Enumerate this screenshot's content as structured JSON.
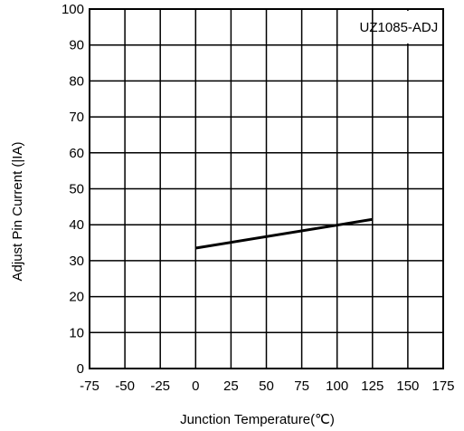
{
  "chart_data": {
    "type": "line",
    "title": "",
    "xlabel": "Junction Temperature(℃)",
    "ylabel": "Adjust Pin Current (|IA)",
    "xlim": [
      -75,
      175
    ],
    "ylim": [
      0,
      100
    ],
    "xticks": [
      -75,
      -50,
      -25,
      0,
      25,
      50,
      75,
      100,
      125,
      150,
      175
    ],
    "yticks": [
      0,
      10,
      20,
      30,
      40,
      50,
      60,
      70,
      80,
      90,
      100
    ],
    "grid": true,
    "annotation": "UZ1085-ADJ",
    "series": [
      {
        "x": [
          0,
          125
        ],
        "y": [
          33.5,
          41.5
        ]
      }
    ]
  },
  "colors": {
    "line": "#000000",
    "grid": "#000000",
    "background": "#ffffff"
  }
}
